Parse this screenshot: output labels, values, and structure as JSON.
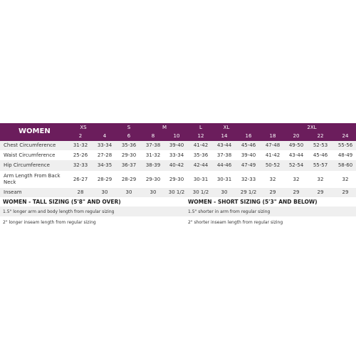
{
  "table": {
    "title": "WOMEN",
    "size_groups": [
      "XS",
      "S",
      "M",
      "L",
      "XL",
      "2XL"
    ],
    "sizes": [
      "2",
      "4",
      "6",
      "8",
      "10",
      "12",
      "14",
      "16",
      "18",
      "20",
      "22",
      "24"
    ],
    "rows": [
      {
        "label": "Chest Circumference",
        "values": [
          "31-32",
          "33-34",
          "35-36",
          "37-38",
          "39-40",
          "41-42",
          "43-44",
          "45-46",
          "47-48",
          "49-50",
          "52-53",
          "55-56"
        ]
      },
      {
        "label": "Waist Circumference",
        "values": [
          "25-26",
          "27-28",
          "29-30",
          "31-32",
          "33-34",
          "35-36",
          "37-38",
          "39-40",
          "41-42",
          "43-44",
          "45-46",
          "48-49"
        ]
      },
      {
        "label": "Hip Circumference",
        "values": [
          "32-33",
          "34-35",
          "36-37",
          "38-39",
          "40-42",
          "42-44",
          "44-46",
          "47-49",
          "50-52",
          "52-54",
          "55-57",
          "58-60"
        ]
      },
      {
        "label": "Arm Length From Back Neck",
        "values": [
          "26-27",
          "28-29",
          "28-29",
          "29-30",
          "29-30",
          "30-31",
          "30-31",
          "32-33",
          "32",
          "32",
          "32",
          "32"
        ]
      },
      {
        "label": "Inseam",
        "values": [
          "28",
          "30",
          "30",
          "30",
          "30 1/2",
          "30 1/2",
          "30",
          "29 1/2",
          "29",
          "29",
          "29",
          "29"
        ]
      }
    ]
  },
  "tall": {
    "title": "WOMEN - TALL SIZING (5'8\" AND OVER)",
    "notes": [
      "1.5\" longer arm and body length from regular sizing",
      "2\" longer inseam length from regular sizing"
    ]
  },
  "short": {
    "title": "WOMEN - SHORT SIZING (5'3\" AND BELOW)",
    "notes": [
      "1.5\" shorter in arm from regular sizing",
      "2\" shorter inseam length from regular sizing"
    ]
  }
}
